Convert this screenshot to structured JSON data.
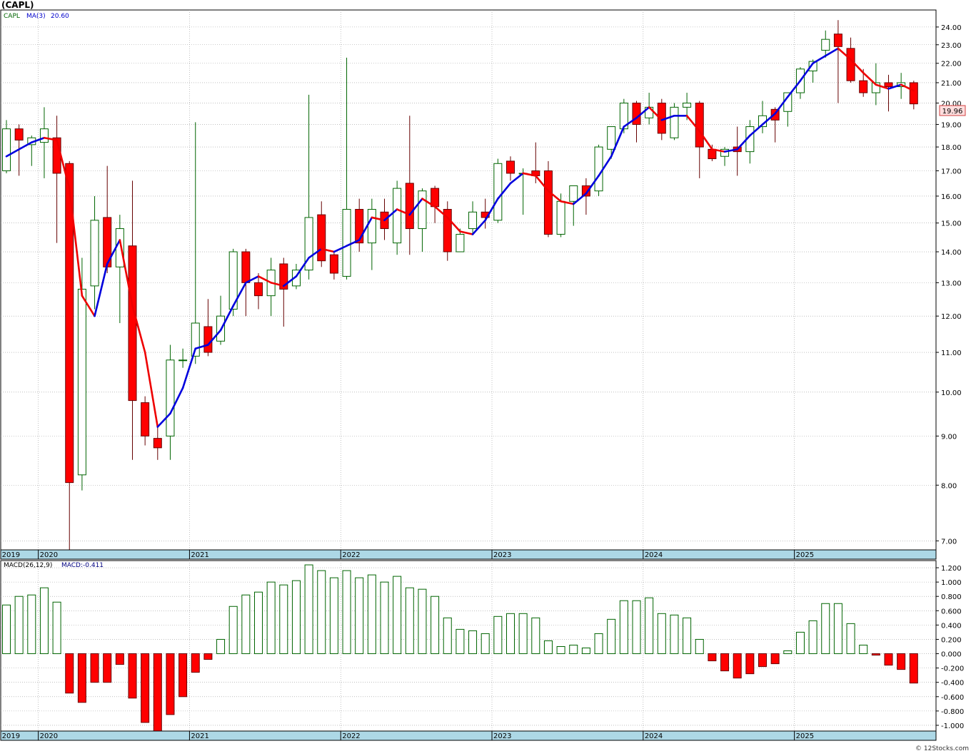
{
  "header": {
    "symbol_label": "(CAPL)",
    "legend_symbol": "CAPL",
    "legend_ma": "MA(3)",
    "legend_ma_value": "20.60",
    "current_price": "19.96"
  },
  "macd_header": {
    "label": "MACD(26,12,9)",
    "value": "MACD:-0.411"
  },
  "footer": {
    "credit": "© 12Stocks.com"
  },
  "colors": {
    "up": "#006400",
    "down": "#ff0000",
    "ma_up": "#0000dd",
    "ma_down": "#ee0000",
    "axis_band": "#add8e6",
    "grid": "#9a9a9a"
  },
  "chart_data": [
    {
      "type": "candlestick",
      "title": "(CAPL)",
      "interval": "monthly",
      "scale": "log",
      "ylim": [
        6.85,
        25.0
      ],
      "yticks": [
        "7.00",
        "8.00",
        "9.00",
        "10.00",
        "11.00",
        "12.00",
        "13.00",
        "14.00",
        "15.00",
        "16.00",
        "17.00",
        "18.00",
        "19.00",
        "20.00",
        "21.00",
        "22.00",
        "23.00",
        "24.00"
      ],
      "year_labels": [
        "2019",
        "2020",
        "2021",
        "2022",
        "2023",
        "2024",
        "2025"
      ],
      "grid": true,
      "series": [
        {
          "name": "CAPL",
          "candles": [
            {
              "o": 17.0,
              "h": 19.2,
              "l": 16.9,
              "c": 18.8
            },
            {
              "o": 18.8,
              "h": 19.0,
              "l": 16.8,
              "c": 18.3
            },
            {
              "o": 18.1,
              "h": 18.5,
              "l": 17.2,
              "c": 18.4
            },
            {
              "o": 18.2,
              "h": 19.8,
              "l": 16.7,
              "c": 18.8
            },
            {
              "o": 18.4,
              "h": 19.4,
              "l": 14.3,
              "c": 16.9
            },
            {
              "o": 17.3,
              "h": 17.4,
              "l": 6.8,
              "c": 8.05
            },
            {
              "o": 8.2,
              "h": 13.8,
              "l": 7.9,
              "c": 12.8
            },
            {
              "o": 12.9,
              "h": 16.0,
              "l": 12.2,
              "c": 15.1
            },
            {
              "o": 15.2,
              "h": 17.2,
              "l": 13.3,
              "c": 13.5
            },
            {
              "o": 13.5,
              "h": 15.3,
              "l": 11.8,
              "c": 14.8
            },
            {
              "o": 14.2,
              "h": 16.6,
              "l": 8.5,
              "c": 9.8
            },
            {
              "o": 9.75,
              "h": 9.9,
              "l": 8.8,
              "c": 9.0
            },
            {
              "o": 8.95,
              "h": 9.2,
              "l": 8.5,
              "c": 8.75
            },
            {
              "o": 9.0,
              "h": 11.2,
              "l": 8.5,
              "c": 10.8
            },
            {
              "o": 10.8,
              "h": 11.1,
              "l": 10.6,
              "c": 10.8
            },
            {
              "o": 10.9,
              "h": 19.1,
              "l": 10.7,
              "c": 11.8
            },
            {
              "o": 11.7,
              "h": 12.5,
              "l": 10.9,
              "c": 11.0
            },
            {
              "o": 11.3,
              "h": 12.6,
              "l": 11.2,
              "c": 12.0
            },
            {
              "o": 12.2,
              "h": 14.1,
              "l": 12.0,
              "c": 14.0
            },
            {
              "o": 14.0,
              "h": 14.1,
              "l": 12.0,
              "c": 13.0
            },
            {
              "o": 13.0,
              "h": 13.3,
              "l": 12.2,
              "c": 12.6
            },
            {
              "o": 12.6,
              "h": 13.8,
              "l": 12.0,
              "c": 13.4
            },
            {
              "o": 13.6,
              "h": 13.8,
              "l": 11.7,
              "c": 12.8
            },
            {
              "o": 12.9,
              "h": 13.6,
              "l": 12.8,
              "c": 13.4
            },
            {
              "o": 13.4,
              "h": 20.4,
              "l": 13.1,
              "c": 15.2
            },
            {
              "o": 15.3,
              "h": 15.8,
              "l": 13.5,
              "c": 13.7
            },
            {
              "o": 13.9,
              "h": 14.0,
              "l": 13.1,
              "c": 13.3
            },
            {
              "o": 13.2,
              "h": 22.3,
              "l": 13.1,
              "c": 15.5
            },
            {
              "o": 15.5,
              "h": 15.9,
              "l": 14.0,
              "c": 14.3
            },
            {
              "o": 14.3,
              "h": 15.9,
              "l": 13.4,
              "c": 15.5
            },
            {
              "o": 15.4,
              "h": 15.9,
              "l": 14.4,
              "c": 14.8
            },
            {
              "o": 14.3,
              "h": 16.6,
              "l": 13.9,
              "c": 16.3
            },
            {
              "o": 16.5,
              "h": 19.4,
              "l": 13.9,
              "c": 14.8
            },
            {
              "o": 14.8,
              "h": 16.3,
              "l": 14.0,
              "c": 16.2
            },
            {
              "o": 16.3,
              "h": 16.4,
              "l": 15.0,
              "c": 15.6
            },
            {
              "o": 15.5,
              "h": 15.8,
              "l": 13.7,
              "c": 14.0
            },
            {
              "o": 14.0,
              "h": 14.8,
              "l": 14.0,
              "c": 14.6
            },
            {
              "o": 14.8,
              "h": 15.8,
              "l": 14.6,
              "c": 15.4
            },
            {
              "o": 15.4,
              "h": 15.9,
              "l": 14.8,
              "c": 15.2
            },
            {
              "o": 15.1,
              "h": 17.5,
              "l": 15.0,
              "c": 17.3
            },
            {
              "o": 17.4,
              "h": 17.6,
              "l": 16.6,
              "c": 16.9
            },
            {
              "o": 16.9,
              "h": 17.1,
              "l": 15.3,
              "c": 16.9
            },
            {
              "o": 17.0,
              "h": 18.2,
              "l": 16.5,
              "c": 16.8
            },
            {
              "o": 17.0,
              "h": 17.4,
              "l": 14.5,
              "c": 14.6
            },
            {
              "o": 14.6,
              "h": 16.1,
              "l": 14.5,
              "c": 15.8
            },
            {
              "o": 15.8,
              "h": 16.4,
              "l": 14.9,
              "c": 16.4
            },
            {
              "o": 16.4,
              "h": 16.7,
              "l": 15.3,
              "c": 16.0
            },
            {
              "o": 16.2,
              "h": 18.1,
              "l": 16.0,
              "c": 18.0
            },
            {
              "o": 17.9,
              "h": 18.9,
              "l": 17.5,
              "c": 18.9
            },
            {
              "o": 18.8,
              "h": 20.2,
              "l": 18.6,
              "c": 20.0
            },
            {
              "o": 20.0,
              "h": 20.1,
              "l": 18.2,
              "c": 19.0
            },
            {
              "o": 19.3,
              "h": 20.5,
              "l": 19.0,
              "c": 19.8
            },
            {
              "o": 20.0,
              "h": 20.2,
              "l": 18.3,
              "c": 18.6
            },
            {
              "o": 18.4,
              "h": 20.0,
              "l": 18.3,
              "c": 19.8
            },
            {
              "o": 19.8,
              "h": 20.5,
              "l": 19.2,
              "c": 20.0
            },
            {
              "o": 20.0,
              "h": 20.1,
              "l": 16.7,
              "c": 18.0
            },
            {
              "o": 17.9,
              "h": 18.1,
              "l": 17.4,
              "c": 17.5
            },
            {
              "o": 17.6,
              "h": 18.0,
              "l": 17.2,
              "c": 17.9
            },
            {
              "o": 18.0,
              "h": 18.9,
              "l": 16.8,
              "c": 17.8
            },
            {
              "o": 17.8,
              "h": 19.2,
              "l": 17.3,
              "c": 18.9
            },
            {
              "o": 18.9,
              "h": 20.1,
              "l": 18.6,
              "c": 19.4
            },
            {
              "o": 19.7,
              "h": 19.8,
              "l": 18.2,
              "c": 19.2
            },
            {
              "o": 19.6,
              "h": 20.5,
              "l": 18.9,
              "c": 20.5
            },
            {
              "o": 20.5,
              "h": 21.8,
              "l": 20.2,
              "c": 21.7
            },
            {
              "o": 21.6,
              "h": 22.2,
              "l": 21.0,
              "c": 22.1
            },
            {
              "o": 22.7,
              "h": 23.8,
              "l": 22.3,
              "c": 23.3
            },
            {
              "o": 23.6,
              "h": 24.4,
              "l": 20.0,
              "c": 22.9
            },
            {
              "o": 22.8,
              "h": 23.4,
              "l": 21.0,
              "c": 21.1
            },
            {
              "o": 21.1,
              "h": 21.7,
              "l": 20.3,
              "c": 20.5
            },
            {
              "o": 20.5,
              "h": 22.0,
              "l": 19.9,
              "c": 21.0
            },
            {
              "o": 21.0,
              "h": 21.4,
              "l": 19.6,
              "c": 20.8
            },
            {
              "o": 20.8,
              "h": 21.5,
              "l": 20.2,
              "c": 21.0
            },
            {
              "o": 21.0,
              "h": 21.1,
              "l": 19.7,
              "c": 19.96
            }
          ]
        },
        {
          "name": "MA(3)",
          "values": [
            17.6,
            17.9,
            18.2,
            18.4,
            18.3,
            16.3,
            12.6,
            12.0,
            13.6,
            14.4,
            12.3,
            11.0,
            9.2,
            9.5,
            10.1,
            11.1,
            11.2,
            11.6,
            12.3,
            13.0,
            13.2,
            13.0,
            12.9,
            13.2,
            13.8,
            14.1,
            14.0,
            14.2,
            14.4,
            15.2,
            15.1,
            15.5,
            15.3,
            15.9,
            15.6,
            15.2,
            14.7,
            14.6,
            15.1,
            15.9,
            16.5,
            16.9,
            16.8,
            16.2,
            15.8,
            15.7,
            16.1,
            16.8,
            17.6,
            18.9,
            19.3,
            19.8,
            19.2,
            19.4,
            19.4,
            18.7,
            17.9,
            17.8,
            17.9,
            18.5,
            19.0,
            19.5,
            20.3,
            21.1,
            22.0,
            22.4,
            22.8,
            22.2,
            21.5,
            20.9,
            20.7,
            20.9,
            20.6
          ]
        }
      ]
    },
    {
      "type": "bar",
      "title": "MACD(26,12,9)",
      "ylim": [
        -1.08,
        1.3
      ],
      "yticks": [
        "-1.000",
        "-0.800",
        "-0.600",
        "-0.400",
        "-0.200",
        "0.000",
        "0.200",
        "0.400",
        "0.600",
        "0.800",
        "1.000",
        "1.200"
      ],
      "year_labels": [
        "2019",
        "2020",
        "2021",
        "2022",
        "2023",
        "2024",
        "2025"
      ],
      "grid": true,
      "series": [
        {
          "name": "MACD",
          "values": [
            0.68,
            0.8,
            0.82,
            0.92,
            0.72,
            -0.55,
            -0.68,
            -0.4,
            -0.4,
            -0.15,
            -0.62,
            -0.96,
            -1.08,
            -0.85,
            -0.6,
            -0.26,
            -0.08,
            0.2,
            0.66,
            0.82,
            0.86,
            1.0,
            0.96,
            1.02,
            1.24,
            1.16,
            1.06,
            1.16,
            1.06,
            1.1,
            1.0,
            1.08,
            0.92,
            0.9,
            0.8,
            0.5,
            0.34,
            0.32,
            0.28,
            0.52,
            0.56,
            0.56,
            0.5,
            0.18,
            0.1,
            0.12,
            0.08,
            0.28,
            0.48,
            0.74,
            0.74,
            0.78,
            0.56,
            0.54,
            0.5,
            0.2,
            -0.1,
            -0.24,
            -0.34,
            -0.28,
            -0.18,
            -0.14,
            0.04,
            0.3,
            0.46,
            0.7,
            0.7,
            0.42,
            0.12,
            -0.02,
            -0.16,
            -0.22,
            -0.41
          ]
        }
      ]
    }
  ]
}
